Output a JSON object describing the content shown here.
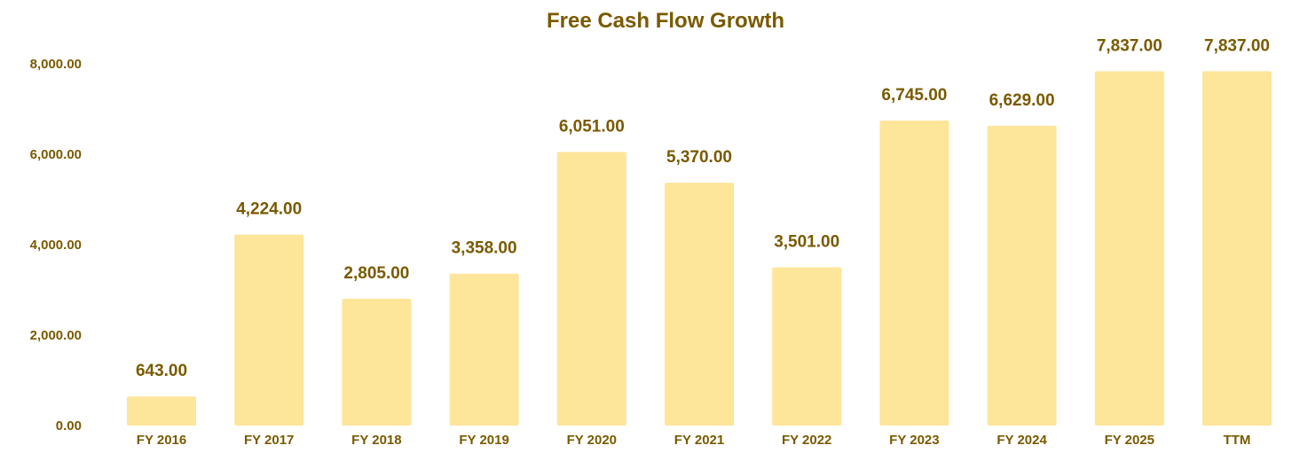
{
  "chart_data": {
    "type": "bar",
    "title": "Free Cash Flow Growth",
    "xlabel": "",
    "ylabel": "",
    "categories": [
      "FY 2016",
      "FY 2017",
      "FY 2018",
      "FY 2019",
      "FY 2020",
      "FY 2021",
      "FY 2022",
      "FY 2023",
      "FY 2024",
      "FY 2025",
      "TTM"
    ],
    "values": [
      643,
      4224,
      2805,
      3358,
      6051,
      5370,
      3501,
      6745,
      6629,
      7837,
      7837
    ],
    "value_labels": [
      "643.00",
      "4,224.00",
      "2,805.00",
      "3,358.00",
      "6,051.00",
      "5,370.00",
      "3,501.00",
      "6,745.00",
      "6,629.00",
      "7,837.00",
      "7,837.00"
    ],
    "yticks": [
      0,
      2000,
      4000,
      6000,
      8000
    ],
    "ytick_labels": [
      "0.00",
      "2,000.00",
      "4,000.00",
      "6,000.00",
      "8,000.00"
    ],
    "ylim": [
      0,
      8000
    ],
    "grid": false,
    "legend": "none",
    "bar_color": "#FDE59A",
    "text_color": "#7A5A00"
  }
}
